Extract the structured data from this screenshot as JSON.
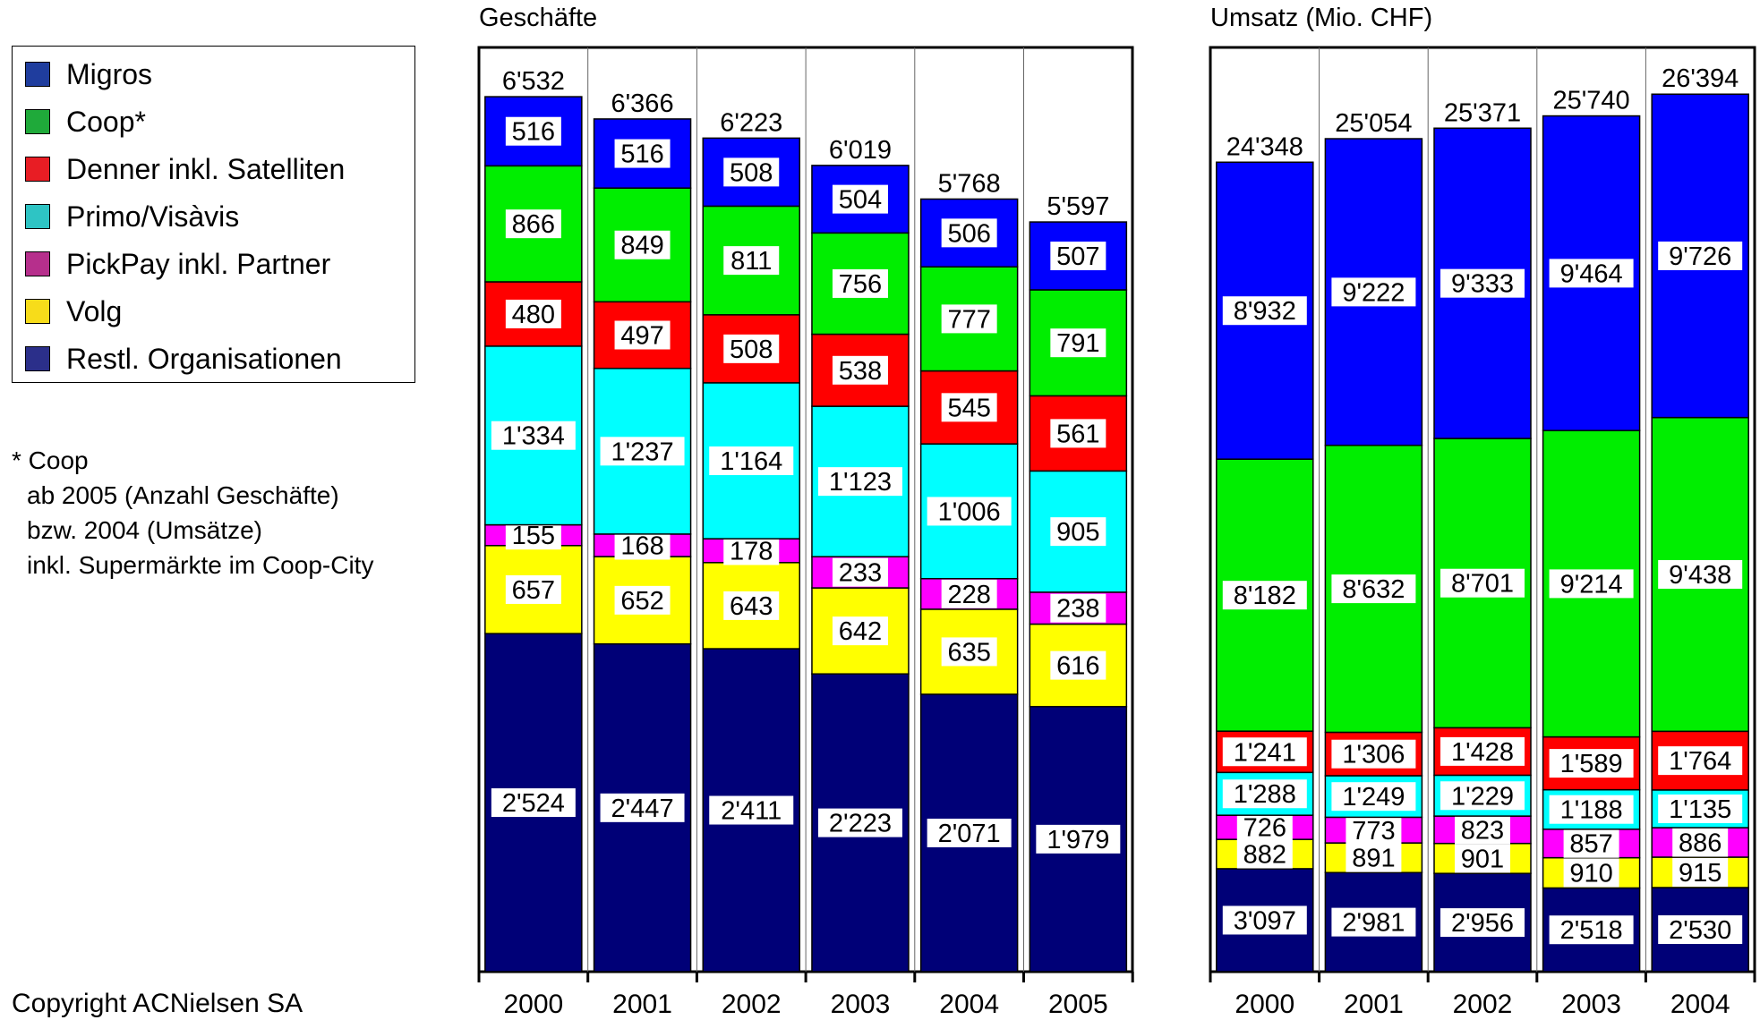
{
  "legend": {
    "items": [
      {
        "label": "Migros",
        "color": "#1f3d9e"
      },
      {
        "label": "Coop*",
        "color": "#1faa3a"
      },
      {
        "label": "Denner inkl. Satelliten",
        "color": "#e81d24"
      },
      {
        "label": "Primo/Visàvis",
        "color": "#2ec4c4"
      },
      {
        "label": "PickPay inkl. Partner",
        "color": "#b62f8c"
      },
      {
        "label": "Volg",
        "color": "#f7dc1a"
      },
      {
        "label": "Restl. Organisationen",
        "color": "#2b2f8a"
      }
    ]
  },
  "note": {
    "line1": "* Coop",
    "line2": "ab 2005 (Anzahl Geschäfte)",
    "line3": "bzw. 2004 (Umsätze)",
    "line4": "inkl. Supermärkte im Coop-City"
  },
  "copyright": "Copyright ACNielsen SA",
  "colors": {
    "Migros": "#0000ff",
    "Coop": "#00ee00",
    "Denner": "#ff0000",
    "Primo": "#00ffff",
    "PickPay": "#ff00ff",
    "Volg": "#ffff00",
    "Restl": "#000077"
  },
  "chart_data": [
    {
      "type": "bar",
      "stacked": true,
      "title": "Geschäfte",
      "categories": [
        "2000",
        "2001",
        "2002",
        "2003",
        "2004",
        "2005"
      ],
      "series": [
        {
          "name": "Restl. Organisationen",
          "color_key": "Restl",
          "values": [
            2524,
            2447,
            2411,
            2223,
            2071,
            1979
          ],
          "labels": [
            "2'524",
            "2'447",
            "2'411",
            "2'223",
            "2'071",
            "1'979"
          ]
        },
        {
          "name": "Volg",
          "color_key": "Volg",
          "values": [
            657,
            652,
            643,
            642,
            635,
            616
          ],
          "labels": [
            "657",
            "652",
            "643",
            "642",
            "635",
            "616"
          ]
        },
        {
          "name": "PickPay inkl. Partner",
          "color_key": "PickPay",
          "values": [
            155,
            168,
            178,
            233,
            228,
            238
          ],
          "labels": [
            "155",
            "168",
            "178",
            "233",
            "228",
            "238"
          ]
        },
        {
          "name": "Primo/Visàvis",
          "color_key": "Primo",
          "values": [
            1334,
            1237,
            1164,
            1123,
            1006,
            905
          ],
          "labels": [
            "1'334",
            "1'237",
            "1'164",
            "1'123",
            "1'006",
            "905"
          ]
        },
        {
          "name": "Denner inkl. Satelliten",
          "color_key": "Denner",
          "values": [
            480,
            497,
            508,
            538,
            545,
            561
          ],
          "labels": [
            "480",
            "497",
            "508",
            "538",
            "545",
            "561"
          ]
        },
        {
          "name": "Coop*",
          "color_key": "Coop",
          "values": [
            866,
            849,
            811,
            756,
            777,
            791
          ],
          "labels": [
            "866",
            "849",
            "811",
            "756",
            "777",
            "791"
          ]
        },
        {
          "name": "Migros",
          "color_key": "Migros",
          "values": [
            516,
            516,
            508,
            504,
            506,
            507
          ],
          "labels": [
            "516",
            "516",
            "508",
            "504",
            "506",
            "507"
          ]
        }
      ],
      "totals": [
        6532,
        6366,
        6223,
        6019,
        5768,
        5597
      ],
      "total_labels": [
        "6'532",
        "6'366",
        "6'223",
        "6'019",
        "5'768",
        "5'597"
      ],
      "ylim": [
        0,
        6900
      ]
    },
    {
      "type": "bar",
      "stacked": true,
      "title": "Umsatz (Mio. CHF)",
      "categories": [
        "2000",
        "2001",
        "2002",
        "2003",
        "2004"
      ],
      "series": [
        {
          "name": "Restl. Organisationen",
          "color_key": "Restl",
          "values": [
            3097,
            2981,
            2956,
            2518,
            2530
          ],
          "labels": [
            "3'097",
            "2'981",
            "2'956",
            "2'518",
            "2'530"
          ]
        },
        {
          "name": "Volg",
          "color_key": "Volg",
          "values": [
            882,
            891,
            901,
            910,
            915
          ],
          "labels": [
            "882",
            "891",
            "901",
            "910",
            "915"
          ]
        },
        {
          "name": "PickPay inkl. Partner",
          "color_key": "PickPay",
          "values": [
            726,
            773,
            823,
            857,
            886
          ],
          "labels": [
            "726",
            "773",
            "823",
            "857",
            "886"
          ]
        },
        {
          "name": "Primo/Visàvis",
          "color_key": "Primo",
          "values": [
            1288,
            1249,
            1229,
            1188,
            1135
          ],
          "labels": [
            "1'288",
            "1'249",
            "1'229",
            "1'188",
            "1'135"
          ]
        },
        {
          "name": "Denner inkl. Satelliten",
          "color_key": "Denner",
          "values": [
            1241,
            1306,
            1428,
            1589,
            1764
          ],
          "labels": [
            "1'241",
            "1'306",
            "1'428",
            "1'589",
            "1'764"
          ]
        },
        {
          "name": "Coop*",
          "color_key": "Coop",
          "values": [
            8182,
            8632,
            8701,
            9214,
            9438
          ],
          "labels": [
            "8'182",
            "8'632",
            "8'701",
            "9'214",
            "9'438"
          ]
        },
        {
          "name": "Migros",
          "color_key": "Migros",
          "values": [
            8932,
            9222,
            9333,
            9464,
            9726
          ],
          "labels": [
            "8'932",
            "9'222",
            "9'333",
            "9'464",
            "9'726"
          ]
        }
      ],
      "totals": [
        24348,
        25054,
        25371,
        25740,
        26394
      ],
      "total_labels": [
        "24'348",
        "25'054",
        "25'371",
        "25'740",
        "26'394"
      ],
      "ylim": [
        0,
        27800
      ]
    }
  ]
}
